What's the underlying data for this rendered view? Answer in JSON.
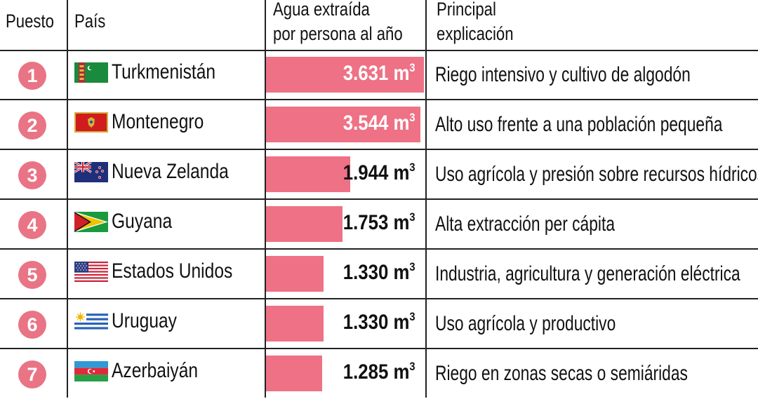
{
  "headers": {
    "rank": "Puesto",
    "country": "País",
    "water_line1": "Agua extraída",
    "water_line2": "por persona al año",
    "expl_line1": "Principal",
    "expl_line2": "explicación"
  },
  "colors": {
    "bar": "#ee7185",
    "rank_badge": "#e97485",
    "rule": "#222222"
  },
  "unit_suffix": "3",
  "chart_data": {
    "type": "table",
    "columns": [
      "Puesto",
      "País",
      "Agua extraída por persona al año",
      "Principal explicación"
    ],
    "xlim": [
      0,
      3631
    ],
    "rows": [
      {
        "rank": "1",
        "country": "Turkmenistán",
        "flag": "turkmenistan-flag-icon",
        "value": 3631,
        "value_label": "3.631 m",
        "explanation": "Riego intensivo y cultivo de algodón"
      },
      {
        "rank": "2",
        "country": "Montenegro",
        "flag": "montenegro-flag-icon",
        "value": 3544,
        "value_label": "3.544 m",
        "explanation": "Alto uso frente a una población pequeña"
      },
      {
        "rank": "3",
        "country": "Nueva Zelanda",
        "flag": "new-zealand-flag-icon",
        "value": 1944,
        "value_label": "1.944 m",
        "explanation": "Uso agrícola y presión sobre recursos hídricos"
      },
      {
        "rank": "4",
        "country": "Guyana",
        "flag": "guyana-flag-icon",
        "value": 1753,
        "value_label": "1.753 m",
        "explanation": "Alta extracción per cápita"
      },
      {
        "rank": "5",
        "country": "Estados Unidos",
        "flag": "usa-flag-icon",
        "value": 1330,
        "value_label": "1.330 m",
        "explanation": "Industria, agricultura y generación eléctrica"
      },
      {
        "rank": "6",
        "country": "Uruguay",
        "flag": "uruguay-flag-icon",
        "value": 1330,
        "value_label": "1.330 m",
        "explanation": "Uso agrícola y productivo"
      },
      {
        "rank": "7",
        "country": "Azerbaiyán",
        "flag": "azerbaijan-flag-icon",
        "value": 1285,
        "value_label": "1.285 m",
        "explanation": "Riego en zonas secas o semiáridas"
      }
    ]
  }
}
